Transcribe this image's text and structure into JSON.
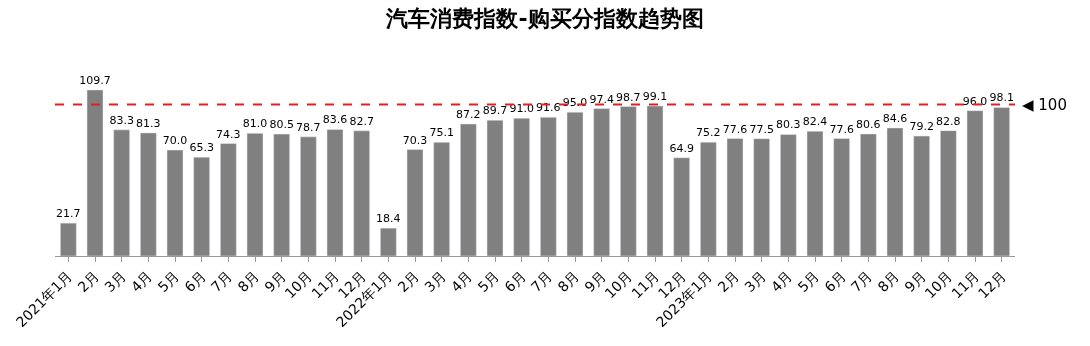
{
  "chart_data": {
    "type": "bar",
    "title": "汽车消费指数-购买分指数趋势图",
    "categories": [
      "2021年1月",
      "2月",
      "3月",
      "4月",
      "5月",
      "6月",
      "7月",
      "8月",
      "9月",
      "10月",
      "11月",
      "12月",
      "2022年1月",
      "2月",
      "3月",
      "4月",
      "5月",
      "6月",
      "7月",
      "8月",
      "9月",
      "10月",
      "11月",
      "12月",
      "2023年1月",
      "2月",
      "3月",
      "4月",
      "5月",
      "6月",
      "7月",
      "8月",
      "9月",
      "10月",
      "11月",
      "12月"
    ],
    "values": [
      21.7,
      109.7,
      83.3,
      81.3,
      70.0,
      65.3,
      74.3,
      81.0,
      80.5,
      78.7,
      83.6,
      82.7,
      18.4,
      70.3,
      75.1,
      87.2,
      89.7,
      91.0,
      91.6,
      95.0,
      97.4,
      98.7,
      99.1,
      64.9,
      75.2,
      77.6,
      77.5,
      80.3,
      82.4,
      77.6,
      80.6,
      84.6,
      79.2,
      82.8,
      96.0,
      98.1
    ],
    "value_labels": [
      "21.7",
      "109.7",
      "83.3",
      "81.3",
      "70.0",
      "65.3",
      "74.3",
      "81.0",
      "80.5",
      "78.7",
      "83.6",
      "82.7",
      "18.4",
      "70.3",
      "75.1",
      "87.2",
      "89.7",
      "91.0",
      "91.6",
      "95.0",
      "97.4",
      "98.7",
      "99.1",
      "64.9",
      "75.2",
      "77.6",
      "77.5",
      "80.3",
      "82.4",
      "77.6",
      "80.6",
      "84.6",
      "79.2",
      "82.8",
      "96.0",
      "98.1"
    ],
    "color": "#808080",
    "ref_lines": [
      {
        "axis": "y",
        "value": 100,
        "label": "◀ 100",
        "color": "#e02020",
        "line_style": "dashed"
      }
    ]
  }
}
